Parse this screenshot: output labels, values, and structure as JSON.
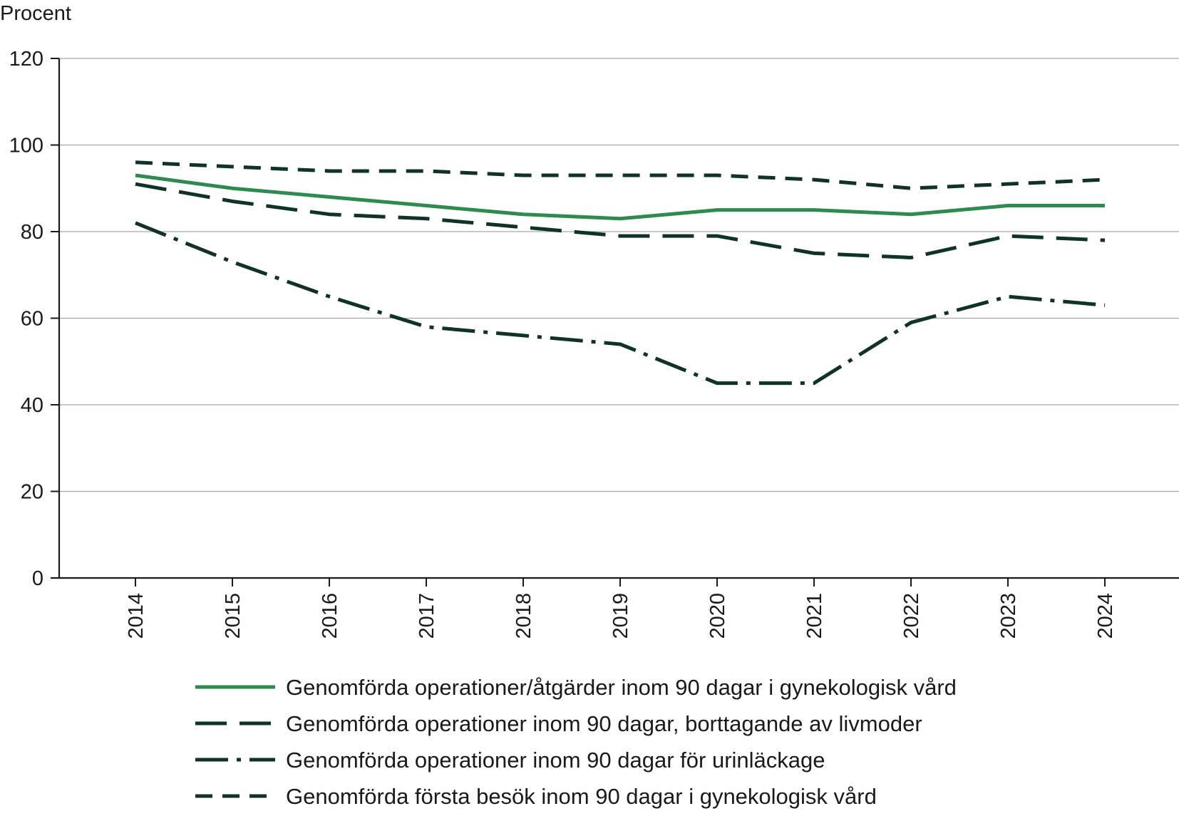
{
  "chart_data": {
    "type": "line",
    "title": "",
    "ylabel": "Procent",
    "xlabel": "",
    "ylim": [
      0,
      120
    ],
    "yticks": [
      0,
      20,
      40,
      60,
      80,
      100,
      120
    ],
    "grid": true,
    "legend_position": "bottom",
    "categories": [
      "2014",
      "2015",
      "2016",
      "2017",
      "2018",
      "2019",
      "2020",
      "2021",
      "2022",
      "2023",
      "2024"
    ],
    "series": [
      {
        "name": "Genomförda operationer/åtgärder inom 90 dagar i gynekologisk vård",
        "values": [
          93,
          90,
          88,
          86,
          84,
          83,
          85,
          85,
          84,
          86,
          86
        ],
        "color": "#2e8b4e",
        "style": "solid"
      },
      {
        "name": "Genomförda operationer inom 90 dagar, borttagande av livmoder",
        "values": [
          91,
          87,
          84,
          83,
          81,
          79,
          79,
          75,
          74,
          79,
          78
        ],
        "color": "#0f3328",
        "style": "long-dash"
      },
      {
        "name": "Genomförda operationer inom 90 dagar för urinläckage",
        "values": [
          82,
          73,
          65,
          58,
          56,
          54,
          45,
          45,
          59,
          65,
          63
        ],
        "color": "#0f3328",
        "style": "dash-dot"
      },
      {
        "name": "Genomförda första besök inom 90 dagar i gynekologisk vård",
        "values": [
          96,
          95,
          94,
          94,
          93,
          93,
          93,
          92,
          90,
          91,
          92
        ],
        "color": "#0f3328",
        "style": "short-dash"
      }
    ]
  }
}
